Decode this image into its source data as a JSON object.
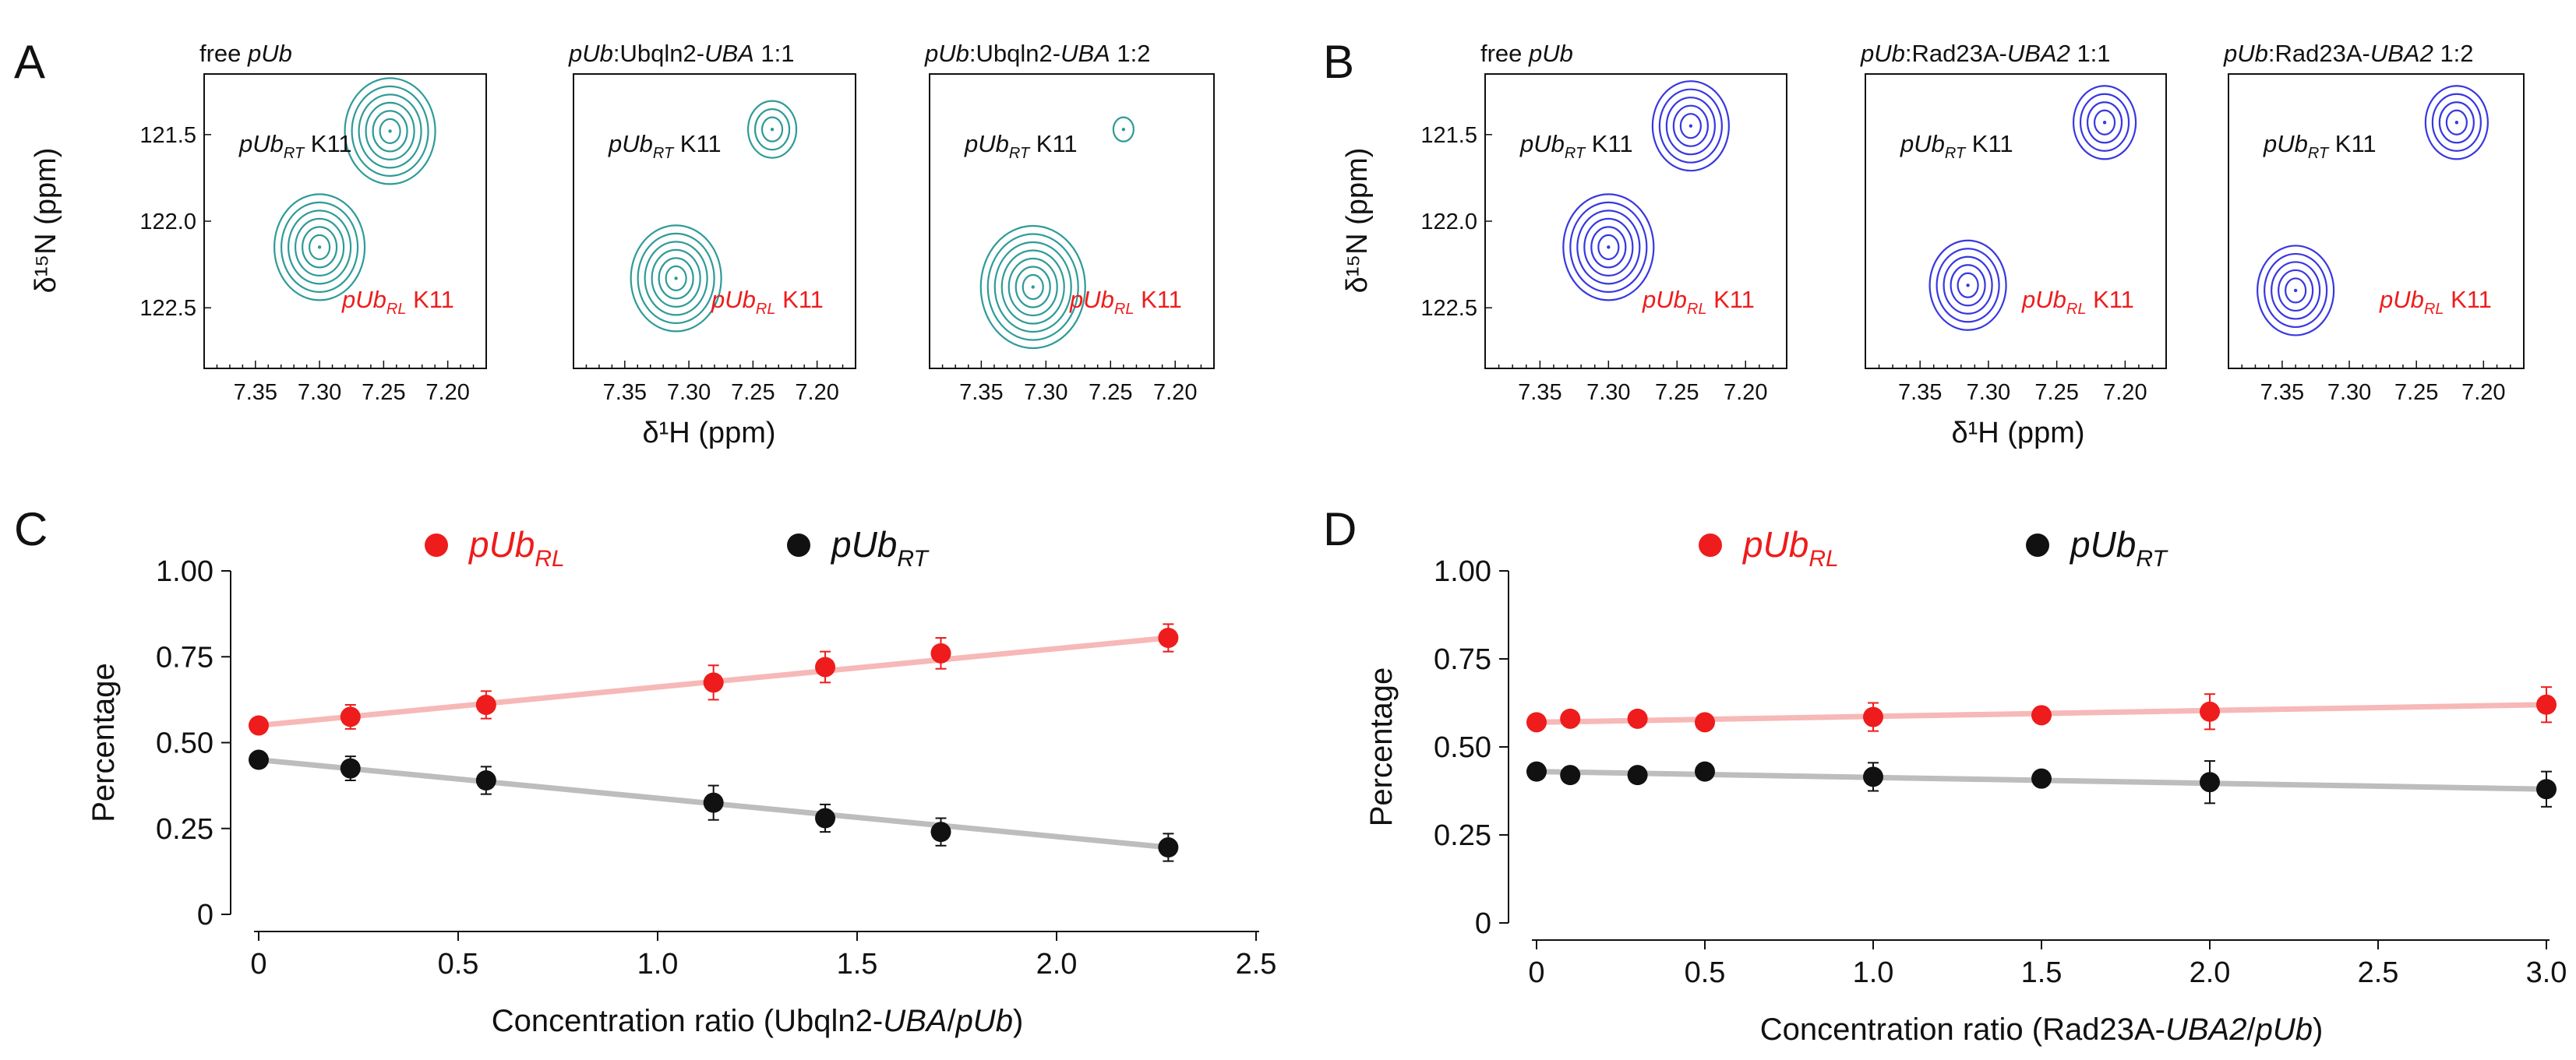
{
  "colors": {
    "teal": "#2e9b98",
    "blue": "#3838e0",
    "red": "#ee1c1c",
    "black": "#111111",
    "red_fit": "#f7b8b8",
    "black_fit": "#bdbdbd"
  },
  "panel_labels": {
    "A": "A",
    "B": "B",
    "C": "C",
    "D": "D"
  },
  "spectra": {
    "y_label": "δ¹⁵N (ppm)",
    "x_label": "δ¹H (ppm)",
    "y_ticks": [
      "121.5",
      "122.0",
      "122.5"
    ],
    "x_ticks": [
      "7.35",
      "7.30",
      "7.25",
      "7.20"
    ],
    "panels": [
      {
        "group": "A",
        "title": "free pUb",
        "color": "teal",
        "peaks": [
          {
            "name": "RT",
            "label": "pUb RT K11",
            "h": 7.245,
            "n": 121.48,
            "rings": 6
          },
          {
            "name": "RL",
            "label": "pUb RL K11",
            "h": 7.3,
            "n": 122.15,
            "rings": 6
          }
        ]
      },
      {
        "group": "A",
        "title": "pUb:Ubqln2-UBA  1:1",
        "color": "teal",
        "peaks": [
          {
            "name": "RT",
            "label": "pUb RT K11",
            "h": 7.235,
            "n": 121.47,
            "rings": 3
          },
          {
            "name": "RL",
            "label": "pUb RL K11",
            "h": 7.31,
            "n": 122.33,
            "rings": 6
          }
        ]
      },
      {
        "group": "A",
        "title": "pUb:Ubqln2-UBA  1:2",
        "color": "teal",
        "peaks": [
          {
            "name": "RT",
            "label": "pUb RT K11",
            "h": 7.24,
            "n": 121.47,
            "rings": 1
          },
          {
            "name": "RL",
            "label": "pUb RL K11",
            "h": 7.31,
            "n": 122.38,
            "rings": 7
          }
        ]
      },
      {
        "group": "B",
        "title": "free pUb",
        "color": "blue",
        "peaks": [
          {
            "name": "RT",
            "label": "pUb RT K11",
            "h": 7.24,
            "n": 121.45,
            "rings": 5
          },
          {
            "name": "RL",
            "label": "pUb RL K11",
            "h": 7.3,
            "n": 122.15,
            "rings": 6
          }
        ]
      },
      {
        "group": "B",
        "title": "pUb:Rad23A-UBA2 1:1",
        "color": "blue",
        "peaks": [
          {
            "name": "RT",
            "label": "pUb RT K11",
            "h": 7.215,
            "n": 121.43,
            "rings": 4
          },
          {
            "name": "RL",
            "label": "pUb RL K11",
            "h": 7.315,
            "n": 122.37,
            "rings": 5
          }
        ]
      },
      {
        "group": "B",
        "title": "pUb:Rad23A-UBA2 1:2",
        "color": "blue",
        "peaks": [
          {
            "name": "RT",
            "label": "pUb RT K11",
            "h": 7.22,
            "n": 121.43,
            "rings": 4
          },
          {
            "name": "RL",
            "label": "pUb RL K11",
            "h": 7.34,
            "n": 122.4,
            "rings": 5
          }
        ]
      }
    ]
  },
  "chart_data": [
    {
      "panel": "C",
      "type": "scatter",
      "xlabel": "Concentration ratio (Ubqln2-UBA/pUb)",
      "ylabel": "Percentage",
      "xlim": [
        0,
        2.5
      ],
      "ylim": [
        0,
        1.0
      ],
      "xticks": [
        "0",
        "0.5",
        "1.0",
        "1.5",
        "2.0",
        "2.5"
      ],
      "yticks": [
        "0",
        "0.25",
        "0.50",
        "0.75",
        "1.00"
      ],
      "legend": [
        {
          "name": "pUbRL",
          "color": "red"
        },
        {
          "name": "pUbRT",
          "color": "black"
        }
      ],
      "series": [
        {
          "name": "pUbRL",
          "color": "red",
          "x": [
            0,
            0.23,
            0.57,
            1.14,
            1.42,
            1.71,
            2.28
          ],
          "y": [
            0.55,
            0.575,
            0.61,
            0.675,
            0.72,
            0.76,
            0.805
          ],
          "err": [
            0.02,
            0.035,
            0.04,
            0.05,
            0.045,
            0.045,
            0.04
          ],
          "fit": [
            [
              0,
              0.55
            ],
            [
              2.28,
              0.805
            ]
          ]
        },
        {
          "name": "pUbRT",
          "color": "black",
          "x": [
            0,
            0.23,
            0.57,
            1.14,
            1.42,
            1.71,
            2.28
          ],
          "y": [
            0.45,
            0.425,
            0.39,
            0.325,
            0.28,
            0.24,
            0.195
          ],
          "err": [
            0.02,
            0.035,
            0.04,
            0.05,
            0.04,
            0.04,
            0.04
          ],
          "fit": [
            [
              0,
              0.45
            ],
            [
              2.28,
              0.195
            ]
          ]
        }
      ]
    },
    {
      "panel": "D",
      "type": "scatter",
      "xlabel": "Concentration ratio (Rad23A-UBA2/pUb)",
      "ylabel": "Percentage",
      "xlim": [
        0,
        3.0
      ],
      "ylim": [
        0,
        1.0
      ],
      "xticks": [
        "0",
        "0.5",
        "1.0",
        "1.5",
        "2.0",
        "2.5",
        "3.0"
      ],
      "yticks": [
        "0",
        "0.25",
        "0.50",
        "0.75",
        "1.00"
      ],
      "legend": [
        {
          "name": "pUbRL",
          "color": "red"
        },
        {
          "name": "pUbRT",
          "color": "black"
        }
      ],
      "series": [
        {
          "name": "pUbRL",
          "color": "red",
          "x": [
            0,
            0.1,
            0.3,
            0.5,
            1.0,
            1.5,
            2.0,
            3.0
          ],
          "y": [
            0.57,
            0.58,
            0.58,
            0.57,
            0.585,
            0.59,
            0.6,
            0.62
          ],
          "err": [
            0.01,
            0.01,
            0.01,
            0.01,
            0.04,
            0.02,
            0.05,
            0.05
          ],
          "fit": [
            [
              0,
              0.57
            ],
            [
              3.0,
              0.62
            ]
          ]
        },
        {
          "name": "pUbRT",
          "color": "black",
          "x": [
            0,
            0.1,
            0.3,
            0.5,
            1.0,
            1.5,
            2.0,
            3.0
          ],
          "y": [
            0.43,
            0.42,
            0.42,
            0.43,
            0.415,
            0.41,
            0.4,
            0.38
          ],
          "err": [
            0.01,
            0.01,
            0.01,
            0.01,
            0.04,
            0.02,
            0.06,
            0.05
          ],
          "fit": [
            [
              0,
              0.43
            ],
            [
              3.0,
              0.38
            ]
          ]
        }
      ]
    }
  ]
}
